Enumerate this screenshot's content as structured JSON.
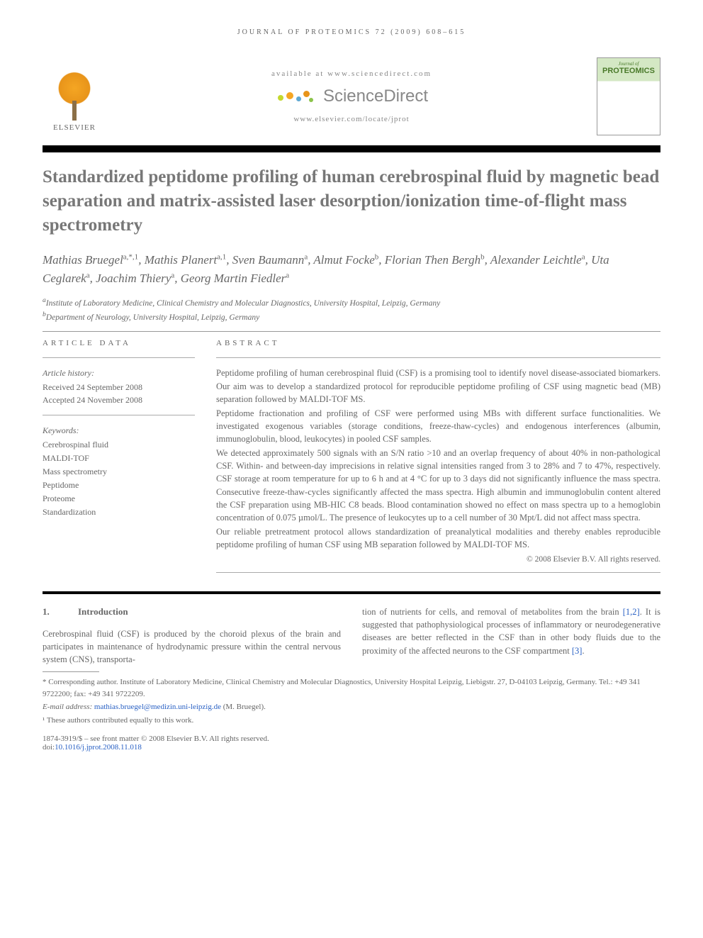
{
  "header": {
    "running_head": "JOURNAL OF PROTEOMICS 72 (2009) 608–615",
    "available_at": "available at www.sciencedirect.com",
    "sciencedirect": "ScienceDirect",
    "locate_url": "www.elsevier.com/locate/jprot",
    "publisher_label": "ELSEVIER",
    "journal_cover_pretitle": "Journal of",
    "journal_cover_title": "PROTEOMICS"
  },
  "title": "Standardized peptidome profiling of human cerebrospinal fluid by magnetic bead separation and matrix-assisted laser desorption/ionization time-of-flight mass spectrometry",
  "authors_html": "Mathias Bruegel<sup>a,*,1</sup>, Mathis Planert<sup>a,1</sup>, Sven Baumann<sup>a</sup>, Almut Focke<sup>b</sup>, Florian Then Bergh<sup>b</sup>, Alexander Leichtle<sup>a</sup>, Uta Ceglarek<sup>a</sup>, Joachim Thiery<sup>a</sup>, Georg Martin Fiedler<sup>a</sup>",
  "affiliations": {
    "a": "Institute of Laboratory Medicine, Clinical Chemistry and Molecular Diagnostics, University Hospital, Leipzig, Germany",
    "b": "Department of Neurology, University Hospital, Leipzig, Germany"
  },
  "article_data": {
    "label": "ARTICLE DATA",
    "history_label": "Article history:",
    "received": "Received 24 September 2008",
    "accepted": "Accepted 24 November 2008",
    "keywords_label": "Keywords:",
    "keywords": [
      "Cerebrospinal fluid",
      "MALDI-TOF",
      "Mass spectrometry",
      "Peptidome",
      "Proteome",
      "Standardization"
    ]
  },
  "abstract": {
    "label": "ABSTRACT",
    "p1": "Peptidome profiling of human cerebrospinal fluid (CSF) is a promising tool to identify novel disease-associated biomarkers. Our aim was to develop a standardized protocol for reproducible peptidome profiling of CSF using magnetic bead (MB) separation followed by MALDI-TOF MS.",
    "p2": "Peptidome fractionation and profiling of CSF were performed using MBs with different surface functionalities. We investigated exogenous variables (storage conditions, freeze-thaw-cycles) and endogenous interferences (albumin, immunoglobulin, blood, leukocytes) in pooled CSF samples.",
    "p3": "We detected approximately 500 signals with an S/N ratio >10 and an overlap frequency of about 40% in non-pathological CSF. Within- and between-day imprecisions in relative signal intensities ranged from 3 to 28% and 7 to 47%, respectively. CSF storage at room temperature for up to 6 h and at 4 °C for up to 3 days did not significantly influence the mass spectra. Consecutive freeze-thaw-cycles significantly affected the mass spectra. High albumin and immunoglobulin content altered the CSF preparation using MB-HIC C8 beads. Blood contamination showed no effect on mass spectra up to a hemoglobin concentration of 0.075 µmol/L. The presence of leukocytes up to a cell number of 30 Mpt/L did not affect mass spectra.",
    "p4": "Our reliable pretreatment protocol allows standardization of preanalytical modalities and thereby enables reproducible peptidome profiling of human CSF using MB separation followed by MALDI-TOF MS.",
    "copyright": "© 2008 Elsevier B.V. All rights reserved."
  },
  "intro": {
    "num": "1.",
    "heading": "Introduction",
    "col1": "Cerebrospinal fluid (CSF) is produced by the choroid plexus of the brain and participates in maintenance of hydrodynamic pressure within the central nervous system (CNS), transporta-",
    "col2_pre": "tion of nutrients for cells, and removal of metabolites from the brain ",
    "col2_ref1": "[1,2]",
    "col2_mid": ". It is suggested that pathophysiological processes of inflammatory or neurodegenerative diseases are better reflected in the CSF than in other body fluids due to the proximity of the affected neurons to the CSF compartment ",
    "col2_ref2": "[3]",
    "col2_post": "."
  },
  "footnotes": {
    "corresponding": "* Corresponding author. Institute of Laboratory Medicine, Clinical Chemistry and Molecular Diagnostics, University Hospital Leipzig, Liebigstr. 27, D-04103 Leipzig, Germany. Tel.: +49 341 9722200; fax: +49 341 9722209.",
    "email_label": "E-mail address: ",
    "email": "mathias.bruegel@medizin.uni-leipzig.de",
    "email_suffix": " (M. Bruegel).",
    "equal": "¹ These authors contributed equally to this work.",
    "front_matter": "1874-3919/$ – see front matter © 2008 Elsevier B.V. All rights reserved.",
    "doi_label": "doi:",
    "doi": "10.1016/j.jprot.2008.11.018"
  },
  "colors": {
    "text": "#666666",
    "title": "#777777",
    "link": "#2860c4",
    "rule": "#999999",
    "black": "#000000",
    "elsevier_orange": "#e8941a",
    "cover_green": "#d4e8c4"
  }
}
